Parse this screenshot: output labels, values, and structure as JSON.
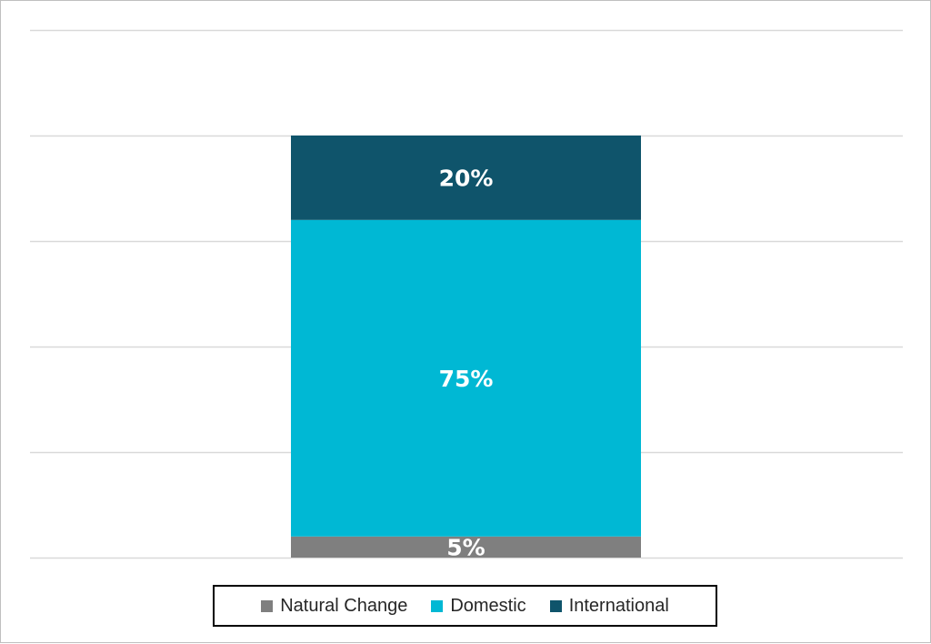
{
  "chart_data": {
    "type": "bar",
    "stacked": true,
    "percent_stacked": true,
    "categories": [
      ""
    ],
    "series": [
      {
        "name": "Natural Change",
        "values": [
          5
        ],
        "label": "5%",
        "color": "#7f7f7f"
      },
      {
        "name": "Domestic",
        "values": [
          75
        ],
        "label": "75%",
        "color": "#00b8d4"
      },
      {
        "name": "International",
        "values": [
          20
        ],
        "label": "20%",
        "color": "#0f546b"
      }
    ],
    "title": "",
    "xlabel": "",
    "ylabel": "",
    "ylim": [
      0,
      125
    ],
    "y_gridlines": [
      0,
      25,
      50,
      75,
      100,
      125
    ],
    "grid": true,
    "axis_tick_labels_shown": false,
    "legend_position": "bottom",
    "data_label_color": "#ffffff",
    "gridline_color": "#d9d9d9"
  },
  "legend": {
    "items": [
      {
        "label": "Natural Change",
        "color": "#7f7f7f"
      },
      {
        "label": "Domestic",
        "color": "#00b8d4"
      },
      {
        "label": "International",
        "color": "#0f546b"
      }
    ]
  }
}
